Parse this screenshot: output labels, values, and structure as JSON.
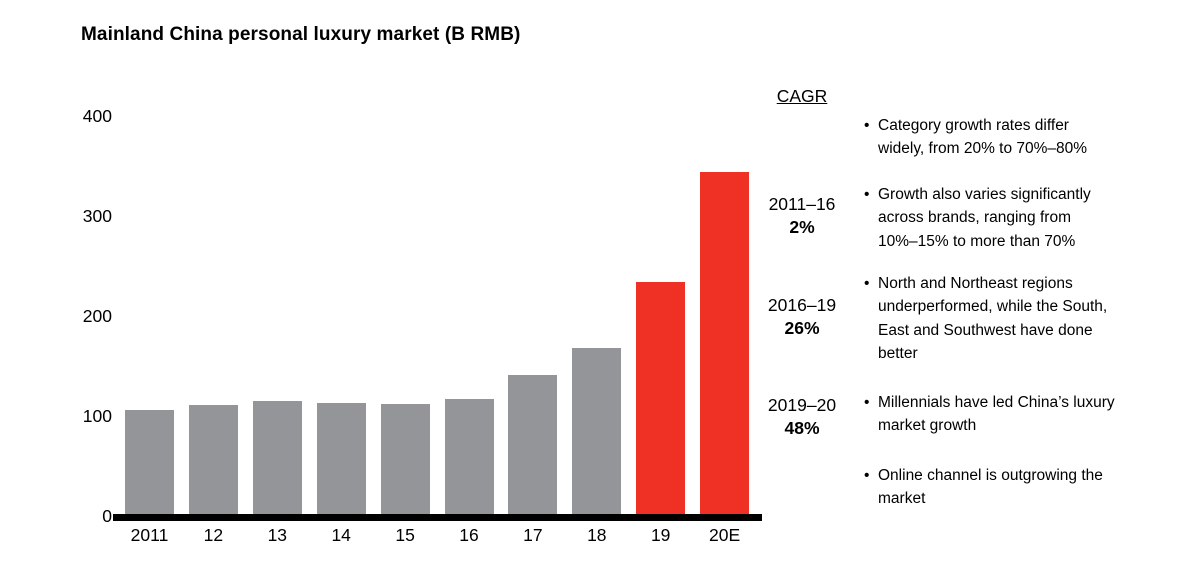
{
  "title": "Mainland China personal luxury market (B RMB)",
  "chart_data": {
    "type": "bar",
    "title": "Mainland China personal luxury market (B RMB)",
    "unit": "B RMB",
    "categories": [
      "2011",
      "12",
      "13",
      "14",
      "15",
      "16",
      "17",
      "18",
      "19",
      "20E"
    ],
    "values": [
      104,
      109,
      113,
      111,
      110,
      115,
      139,
      166,
      232,
      342
    ],
    "xlabel": "",
    "ylabel": "",
    "ylim": [
      0,
      400
    ],
    "yticks": [
      0,
      100,
      200,
      300,
      400
    ],
    "grid": false,
    "legend": "none",
    "highlight_indices": [
      8,
      9
    ],
    "bar_color_default": "#939598",
    "bar_color_highlight": "#ee3124"
  },
  "cagr": {
    "header": "CAGR",
    "groups": [
      {
        "range": "2011–16",
        "value": "2%"
      },
      {
        "range": "2016–19",
        "value": "26%"
      },
      {
        "range": "2019–20",
        "value": "48%"
      }
    ]
  },
  "notes": {
    "marker": "•",
    "items": [
      {
        "lines": [
          "Category growth rates differ",
          "widely, from 20% to 70%–80%"
        ]
      },
      {
        "lines": [
          "Growth also varies significantly",
          "across brands, ranging from",
          "10%–15% to more than 70%"
        ]
      },
      {
        "lines": [
          "North and Northeast regions",
          "underperformed, while the South,",
          "East and Southwest have done",
          "better"
        ]
      },
      {
        "lines": [
          "Millennials have led China’s luxury",
          "market growth"
        ]
      },
      {
        "lines": [
          "Online channel is outgrowing the",
          "market"
        ]
      }
    ]
  },
  "colors": {
    "bar_gray": "#939598",
    "bar_red": "#ee3124",
    "axis": "#000000",
    "text": "#000000"
  }
}
